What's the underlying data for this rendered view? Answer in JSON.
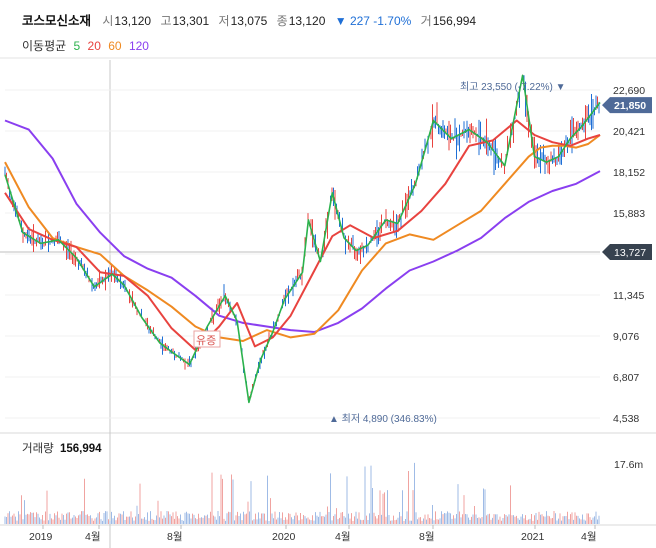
{
  "header": {
    "name": "코스모신소재",
    "open_label": "시",
    "open": "13,120",
    "high_label": "고",
    "high": "13,301",
    "low_label": "저",
    "low": "13,075",
    "close_label": "종",
    "close": "13,120",
    "change": "▼ 227 -1.70%",
    "volume_label": "거",
    "volume": "156,994",
    "ma_title": "이동평균",
    "ma": [
      {
        "period": "5",
        "color": "#2bb24c"
      },
      {
        "period": "20",
        "color": "#e8433f"
      },
      {
        "period": "60",
        "color": "#ef8a22"
      },
      {
        "period": "120",
        "color": "#8a3ff0"
      }
    ]
  },
  "colors": {
    "up": "#e8433f",
    "down": "#1f6fd6",
    "axis_badge": "#37424f",
    "max_badge": "#4f6a98"
  },
  "chart_data": {
    "type": "line",
    "title": "",
    "x_ticks": [
      "2019",
      "4월",
      "8월",
      "2020",
      "4월",
      "8월",
      "2021",
      "4월"
    ],
    "y_ticks": [
      22690,
      20421,
      18152,
      15883,
      13614,
      11345,
      9076,
      6807,
      4538
    ],
    "y_tick_labels": [
      "22,690",
      "20,421",
      "18,152",
      "15,883",
      "",
      "11,345",
      "9,076",
      "6,807",
      "4,538"
    ],
    "ylim": [
      4538,
      22690
    ],
    "current_price": 21850,
    "current_price_label": "21,850",
    "last_close": 13727,
    "last_close_label": "13,727",
    "max_label": "최고 23,550 (-7.22%)",
    "min_label": "최저 4,890 (346.83%)",
    "event_label": "유증",
    "volume": {
      "label": "거래량",
      "value": "156,994",
      "tick": "17.6m"
    },
    "series": [
      {
        "name": "5",
        "color": "#2bb24c",
        "x": [
          0,
          0.03,
          0.06,
          0.09,
          0.12,
          0.15,
          0.18,
          0.2,
          0.23,
          0.26,
          0.28,
          0.31,
          0.34,
          0.37,
          0.39,
          0.41,
          0.43,
          0.45,
          0.47,
          0.5,
          0.51,
          0.53,
          0.55,
          0.57,
          0.59,
          0.61,
          0.64,
          0.66,
          0.69,
          0.72,
          0.75,
          0.78,
          0.81,
          0.84,
          0.87,
          0.89,
          0.91,
          0.93,
          0.95,
          0.97,
          1.0
        ],
        "y": [
          18000,
          14800,
          14200,
          14400,
          13400,
          11800,
          12500,
          11900,
          10100,
          8700,
          8200,
          7500,
          9600,
          11300,
          9900,
          5400,
          7800,
          9300,
          11100,
          12600,
          15500,
          13200,
          17000,
          14500,
          13800,
          14100,
          15500,
          15300,
          17500,
          21000,
          20000,
          20500,
          19800,
          18500,
          23500,
          19000,
          18700,
          19000,
          20000,
          20700,
          22000
        ]
      },
      {
        "name": "20",
        "color": "#e8433f",
        "x": [
          0,
          0.04,
          0.08,
          0.12,
          0.16,
          0.2,
          0.24,
          0.28,
          0.32,
          0.36,
          0.39,
          0.42,
          0.45,
          0.48,
          0.52,
          0.55,
          0.58,
          0.62,
          0.66,
          0.7,
          0.74,
          0.78,
          0.82,
          0.86,
          0.89,
          0.92,
          0.95,
          0.98,
          1.0
        ],
        "y": [
          17000,
          15000,
          14400,
          14000,
          12600,
          12400,
          11300,
          9500,
          8300,
          9600,
          10900,
          8500,
          9000,
          10200,
          12700,
          14600,
          15200,
          14500,
          14900,
          16000,
          17500,
          19600,
          19900,
          21000,
          20200,
          19800,
          19600,
          20000,
          20200
        ]
      },
      {
        "name": "60",
        "color": "#ef8a22",
        "x": [
          0,
          0.04,
          0.08,
          0.12,
          0.16,
          0.2,
          0.24,
          0.28,
          0.32,
          0.36,
          0.4,
          0.44,
          0.48,
          0.52,
          0.56,
          0.6,
          0.64,
          0.68,
          0.72,
          0.76,
          0.8,
          0.84,
          0.88,
          0.9,
          0.92,
          0.94,
          0.96,
          0.98,
          1.0
        ],
        "y": [
          18700,
          16200,
          14500,
          14000,
          13600,
          12400,
          11600,
          10700,
          9600,
          9000,
          8800,
          9400,
          9000,
          9200,
          10500,
          12700,
          14200,
          14700,
          14400,
          15200,
          16000,
          17500,
          19000,
          19500,
          19600,
          19600,
          19500,
          19700,
          20200
        ]
      },
      {
        "name": "120",
        "color": "#8a3ff0",
        "x": [
          0,
          0.04,
          0.08,
          0.12,
          0.16,
          0.2,
          0.24,
          0.28,
          0.32,
          0.36,
          0.4,
          0.44,
          0.48,
          0.52,
          0.56,
          0.6,
          0.64,
          0.68,
          0.72,
          0.76,
          0.8,
          0.84,
          0.88,
          0.92,
          0.96,
          1.0
        ],
        "y": [
          21000,
          20500,
          18900,
          16400,
          14800,
          13500,
          12800,
          12300,
          11300,
          10200,
          9800,
          9600,
          9400,
          9300,
          9800,
          10600,
          11700,
          12700,
          13200,
          13800,
          14500,
          15600,
          16500,
          17100,
          17500,
          18200
        ]
      }
    ]
  }
}
